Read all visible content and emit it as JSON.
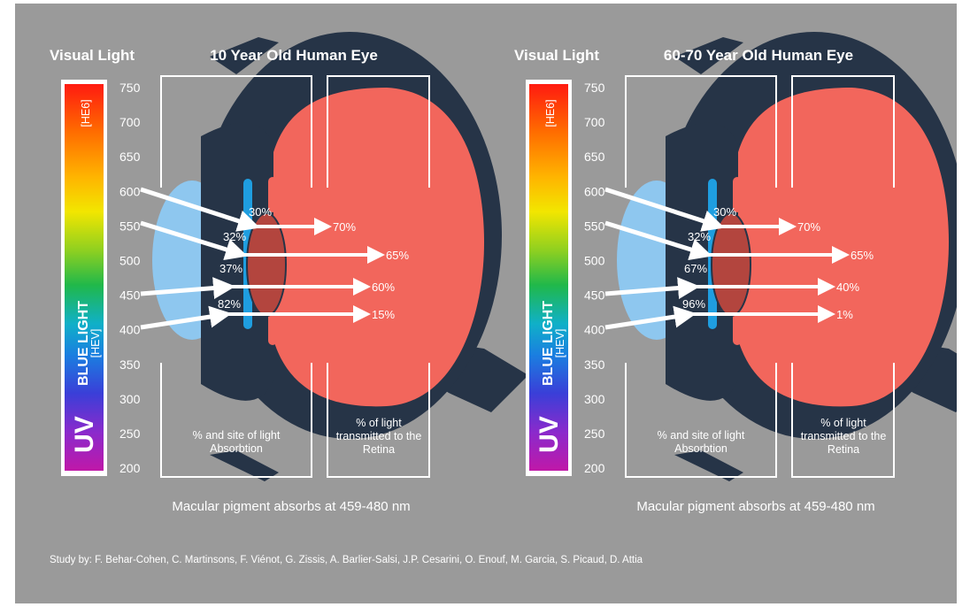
{
  "panels": [
    {
      "visual_light_label": "Visual Light",
      "title": "10 Year Old Human Eye",
      "hev_label": "[HEV]",
      "heg_label": "[HE6]",
      "blue_light_label": "BLUE LIGHT",
      "uv_label": "UV",
      "wavelength_ticks": [
        "750",
        "700",
        "650",
        "600",
        "550",
        "500",
        "450",
        "400",
        "350",
        "300",
        "250",
        "200"
      ],
      "absorption": [
        "30%",
        "32%",
        "37%",
        "82%"
      ],
      "transmitted": [
        "70%",
        "65%",
        "60%",
        "15%"
      ],
      "absorption_caption": [
        "% and site of light",
        "Absorbtion"
      ],
      "retina_caption": [
        "% of light",
        "transmitted to the",
        "Retina"
      ],
      "macular_note": "Macular pigment absorbs at 459-480 nm"
    },
    {
      "visual_light_label": "Visual Light",
      "title": "60-70 Year Old Human Eye",
      "hev_label": "[HEV]",
      "heg_label": "[HE6]",
      "blue_light_label": "BLUE LIGHT",
      "uv_label": "UV",
      "wavelength_ticks": [
        "750",
        "700",
        "650",
        "600",
        "550",
        "500",
        "450",
        "400",
        "350",
        "300",
        "250",
        "200"
      ],
      "absorption": [
        "30%",
        "32%",
        "67%",
        "96%"
      ],
      "transmitted": [
        "70%",
        "65%",
        "40%",
        "1%"
      ],
      "absorption_caption": [
        "% and site of light",
        "Absorbtion"
      ],
      "retina_caption": [
        "% of light",
        "transmitted to the",
        "Retina"
      ],
      "macular_note": "Macular pigment absorbs at 459-480 nm"
    }
  ],
  "study_credit": "Study by: F. Behar-Cohen, C. Martinsons, F. Viénot, G. Zissis, A. Barlier-Salsi, J.P. Cesarini, O. Enouf, M. Garcia, S. Picaud, D. Attia",
  "colors": {
    "background": "#9a9a9a",
    "eye_outer": "#263447",
    "eye_interior": "#f2665c",
    "lens": "#b3453e",
    "cornea": "#8ec7ef",
    "iris": "#1f9ee0",
    "optic_nerve": "#f6bd16"
  }
}
